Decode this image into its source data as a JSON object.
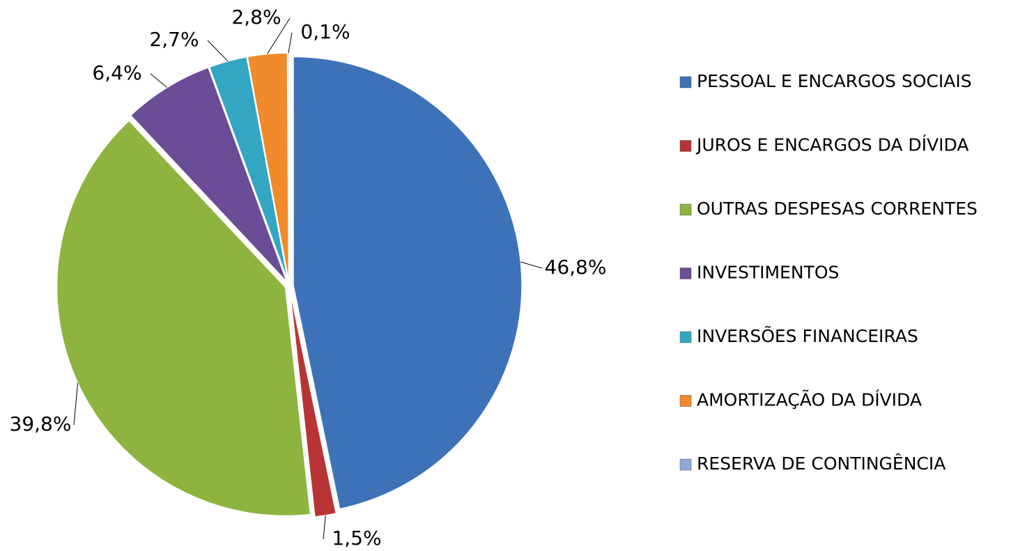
{
  "chart_data": {
    "type": "pie",
    "categories": [
      "PESSOAL E ENCARGOS SOCIAIS",
      "JUROS E ENCARGOS DA DÍVIDA",
      "OUTRAS DESPESAS CORRENTES",
      "INVESTIMENTOS",
      "INVERSÕES FINANCEIRAS",
      "AMORTIZAÇÃO DA DÍVIDA",
      "RESERVA DE CONTINGÊNCIA"
    ],
    "values": [
      46.8,
      1.5,
      39.8,
      6.4,
      2.7,
      2.8,
      0.1
    ],
    "value_labels": [
      "46,8%",
      "1,5%",
      "39,8%",
      "6,4%",
      "2,7%",
      "2,8%",
      "0,1%"
    ],
    "colors": [
      "#3d72b8",
      "#b83434",
      "#8cb43e",
      "#6b4c96",
      "#33a6c2",
      "#f08a2a",
      "#8ea9db"
    ],
    "legend": "right"
  }
}
